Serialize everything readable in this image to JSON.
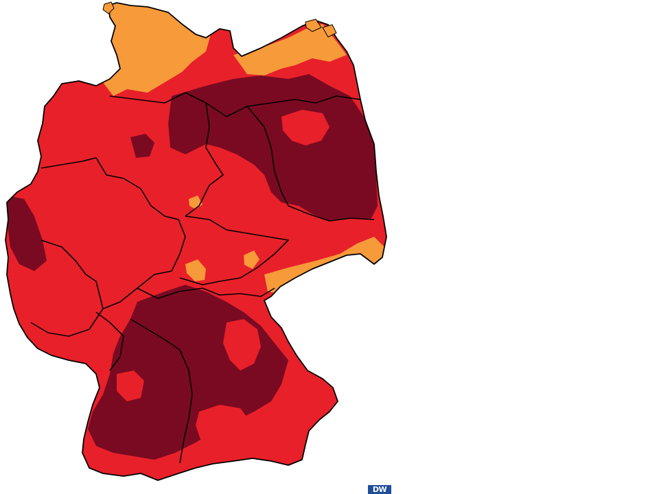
{
  "map": {
    "subject": "Germany",
    "colors": {
      "background": "#ffffff",
      "light_orange": "#f79a3a",
      "red": "#e8202a",
      "dark_red": "#7a0a22",
      "border": "#000000"
    },
    "legend_visible": false
  },
  "logo": {
    "text": "DW"
  }
}
